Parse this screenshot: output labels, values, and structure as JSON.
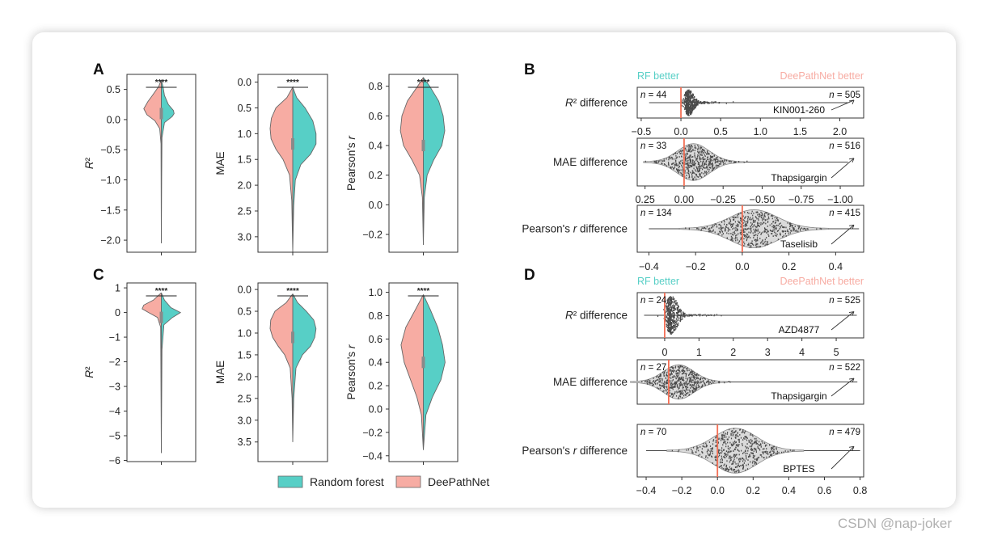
{
  "colors": {
    "rf": "#57cfc6",
    "dpn": "#f7aca3",
    "redline": "#f36f55",
    "beeswarm": "#4a4a4a",
    "violin_grey": "#dadada"
  },
  "watermark": "CSDN @nap-joker",
  "legend": {
    "random_forest": "Random forest",
    "deepathnet": "DeePathNet"
  },
  "chart_data": [
    {
      "panel": "A",
      "metric": "r2",
      "type": "violin",
      "ylabel": "R²",
      "ylim": [
        -2.2,
        0.75
      ],
      "yticks": [
        0.5,
        0.0,
        -0.5,
        -1.0,
        -1.5,
        -2.0
      ],
      "ytick_labels": [
        "0.5",
        "0.0",
        "−0.5",
        "−1.0",
        "−1.5",
        "−2.0"
      ],
      "sig": "****",
      "invert": false,
      "rf": [
        [
          0.66,
          0
        ],
        [
          0.55,
          0.05
        ],
        [
          0.4,
          0.1
        ],
        [
          0.25,
          0.22
        ],
        [
          0.15,
          0.38
        ],
        [
          0.1,
          0.4
        ],
        [
          0.05,
          0.34
        ],
        [
          -0.05,
          0.1
        ],
        [
          -0.3,
          0.02
        ],
        [
          -1,
          0.01
        ],
        [
          -2.05,
          0
        ]
      ],
      "dpn": [
        [
          0.66,
          0
        ],
        [
          0.55,
          0.08
        ],
        [
          0.4,
          0.28
        ],
        [
          0.3,
          0.42
        ],
        [
          0.18,
          0.55
        ],
        [
          0.08,
          0.45
        ],
        [
          -0.02,
          0.2
        ],
        [
          -0.15,
          0.05
        ],
        [
          -0.4,
          0.01
        ],
        [
          -2.05,
          0
        ]
      ]
    },
    {
      "panel": "A",
      "metric": "mae",
      "type": "violin",
      "ylabel": "MAE",
      "ylim": [
        -0.15,
        3.3
      ],
      "yticks": [
        0.0,
        0.5,
        1.0,
        1.5,
        2.0,
        2.5,
        3.0
      ],
      "ytick_labels": [
        "0.0",
        "0.5",
        "1.0",
        "1.5",
        "2.0",
        "2.5",
        "3.0"
      ],
      "sig": "****",
      "invert": true,
      "rf": [
        [
          0.1,
          0
        ],
        [
          0.3,
          0.12
        ],
        [
          0.5,
          0.38
        ],
        [
          0.75,
          0.62
        ],
        [
          1.0,
          0.72
        ],
        [
          1.2,
          0.72
        ],
        [
          1.4,
          0.55
        ],
        [
          1.6,
          0.25
        ],
        [
          1.9,
          0.08
        ],
        [
          2.4,
          0.03
        ],
        [
          3.3,
          0
        ]
      ],
      "dpn": [
        [
          0.1,
          0
        ],
        [
          0.3,
          0.18
        ],
        [
          0.5,
          0.52
        ],
        [
          0.7,
          0.66
        ],
        [
          0.9,
          0.7
        ],
        [
          1.1,
          0.67
        ],
        [
          1.3,
          0.52
        ],
        [
          1.5,
          0.3
        ],
        [
          1.8,
          0.1
        ],
        [
          2.3,
          0.03
        ],
        [
          3.3,
          0
        ]
      ]
    },
    {
      "panel": "A",
      "metric": "pearson",
      "type": "violin",
      "ylabel": "Pearson's r",
      "ylim": [
        -0.32,
        0.88
      ],
      "yticks": [
        0.8,
        0.6,
        0.4,
        0.2,
        0.0,
        -0.2
      ],
      "ytick_labels": [
        "0.8",
        "0.6",
        "0.4",
        "0.2",
        "0.0",
        "−0.2"
      ],
      "sig": "****",
      "invert": false,
      "rf": [
        [
          0.86,
          0
        ],
        [
          0.8,
          0.2
        ],
        [
          0.7,
          0.48
        ],
        [
          0.6,
          0.62
        ],
        [
          0.5,
          0.67
        ],
        [
          0.4,
          0.58
        ],
        [
          0.3,
          0.32
        ],
        [
          0.2,
          0.12
        ],
        [
          0.05,
          0.03
        ],
        [
          -0.27,
          0
        ]
      ],
      "dpn": [
        [
          0.86,
          0
        ],
        [
          0.8,
          0.18
        ],
        [
          0.7,
          0.5
        ],
        [
          0.6,
          0.67
        ],
        [
          0.5,
          0.72
        ],
        [
          0.4,
          0.62
        ],
        [
          0.3,
          0.35
        ],
        [
          0.2,
          0.12
        ],
        [
          0.05,
          0.03
        ],
        [
          -0.27,
          0
        ]
      ]
    },
    {
      "panel": "C",
      "metric": "r2",
      "type": "violin",
      "ylabel": "R²",
      "ylim": [
        -6.05,
        1.2
      ],
      "yticks": [
        1,
        0,
        -1,
        -2,
        -3,
        -4,
        -5,
        -6
      ],
      "ytick_labels": [
        "1",
        "0",
        "−1",
        "−2",
        "−3",
        "−4",
        "−5",
        "−6"
      ],
      "sig": "****",
      "invert": false,
      "rf": [
        [
          0.8,
          0
        ],
        [
          0.5,
          0.1
        ],
        [
          0.2,
          0.3
        ],
        [
          0.0,
          0.6
        ],
        [
          -0.2,
          0.35
        ],
        [
          -0.5,
          0.08
        ],
        [
          -1.5,
          0.02
        ],
        [
          -5.7,
          0
        ]
      ],
      "dpn": [
        [
          0.8,
          0
        ],
        [
          0.5,
          0.25
        ],
        [
          0.3,
          0.55
        ],
        [
          0.15,
          0.6
        ],
        [
          0.0,
          0.4
        ],
        [
          -0.2,
          0.12
        ],
        [
          -0.6,
          0.02
        ],
        [
          -5.7,
          0
        ]
      ]
    },
    {
      "panel": "C",
      "metric": "mae",
      "type": "violin",
      "ylabel": "MAE",
      "ylim": [
        -0.15,
        3.95
      ],
      "yticks": [
        0.0,
        0.5,
        1.0,
        1.5,
        2.0,
        2.5,
        3.0,
        3.5
      ],
      "ytick_labels": [
        "0.0",
        "0.5",
        "1.0",
        "1.5",
        "2.0",
        "2.5",
        "3.0",
        "3.5"
      ],
      "sig": "****",
      "invert": true,
      "rf": [
        [
          0.1,
          0
        ],
        [
          0.3,
          0.15
        ],
        [
          0.5,
          0.42
        ],
        [
          0.7,
          0.65
        ],
        [
          0.9,
          0.72
        ],
        [
          1.1,
          0.68
        ],
        [
          1.3,
          0.55
        ],
        [
          1.5,
          0.3
        ],
        [
          1.8,
          0.1
        ],
        [
          2.5,
          0.03
        ],
        [
          3.5,
          0
        ]
      ],
      "dpn": [
        [
          0.1,
          0
        ],
        [
          0.3,
          0.2
        ],
        [
          0.5,
          0.55
        ],
        [
          0.7,
          0.68
        ],
        [
          0.9,
          0.7
        ],
        [
          1.1,
          0.62
        ],
        [
          1.3,
          0.45
        ],
        [
          1.5,
          0.25
        ],
        [
          1.8,
          0.08
        ],
        [
          2.5,
          0.02
        ],
        [
          3.5,
          0
        ]
      ]
    },
    {
      "panel": "C",
      "metric": "pearson",
      "type": "violin",
      "ylabel": "Pearson's r",
      "ylim": [
        -0.45,
        1.08
      ],
      "yticks": [
        1.0,
        0.8,
        0.6,
        0.4,
        0.2,
        0.0,
        -0.2,
        -0.4
      ],
      "ytick_labels": [
        "1.0",
        "0.8",
        "0.6",
        "0.4",
        "0.2",
        "0.0",
        "−0.2",
        "−0.4"
      ],
      "sig": "****",
      "invert": false,
      "rf": [
        [
          0.98,
          0
        ],
        [
          0.85,
          0.22
        ],
        [
          0.7,
          0.45
        ],
        [
          0.55,
          0.6
        ],
        [
          0.4,
          0.68
        ],
        [
          0.25,
          0.55
        ],
        [
          0.1,
          0.28
        ],
        [
          -0.05,
          0.08
        ],
        [
          -0.35,
          0
        ]
      ],
      "dpn": [
        [
          0.98,
          0
        ],
        [
          0.85,
          0.25
        ],
        [
          0.7,
          0.55
        ],
        [
          0.55,
          0.7
        ],
        [
          0.4,
          0.6
        ],
        [
          0.25,
          0.4
        ],
        [
          0.1,
          0.2
        ],
        [
          -0.05,
          0.06
        ],
        [
          -0.35,
          0
        ]
      ]
    },
    {
      "panel": "B",
      "type": "beeswarm",
      "ylabel": "R² difference",
      "header_left": "RF better",
      "header_right": "DeePathNet better",
      "n_left": "n = 44",
      "n_right": "n = 505",
      "annot": "KIN001-260",
      "xlim": [
        -0.55,
        2.3
      ],
      "invert": false,
      "xticks": [
        -0.5,
        0.0,
        0.5,
        1.0,
        1.5,
        2.0
      ],
      "xtick_labels": [
        "−0.5",
        "0.0",
        "0.5",
        "1.0",
        "1.5",
        "2.0"
      ],
      "zero": 0.0,
      "center": 0.1,
      "spread": 0.06,
      "whisk": [
        -0.4,
        2.1
      ],
      "violin": false,
      "height_scale": 1.0
    },
    {
      "panel": "B",
      "type": "beeswarm",
      "ylabel": "MAE difference",
      "n_left": "n = 33",
      "n_right": "n = 516",
      "annot": "Thapsigargin",
      "xlim": [
        0.3,
        -1.15
      ],
      "invert": true,
      "xticks": [
        0.25,
        0.0,
        -0.25,
        -0.5,
        -0.75,
        -1.0
      ],
      "xtick_labels": [
        "0.25",
        "0.00",
        "−0.25",
        "−0.50",
        "−0.75",
        "−1.00"
      ],
      "zero": 0.0,
      "center": -0.06,
      "spread": 0.1,
      "whisk": [
        0.25,
        -1.05
      ],
      "violin": true,
      "height_scale": 0.9
    },
    {
      "panel": "B",
      "type": "beeswarm",
      "ylabel": "Pearson's r difference",
      "n_left": "n = 134",
      "n_right": "n = 415",
      "annot": "Taselisib",
      "xlim": [
        -0.45,
        0.52
      ],
      "invert": false,
      "xticks": [
        -0.4,
        -0.2,
        0.0,
        0.2,
        0.4
      ],
      "xtick_labels": [
        "−0.4",
        "−0.2",
        "0.0",
        "0.2",
        "0.4"
      ],
      "zero": 0.0,
      "center": 0.05,
      "spread": 0.1,
      "whisk": [
        -0.4,
        0.5
      ],
      "violin": true,
      "height_scale": 0.95
    },
    {
      "panel": "D",
      "type": "beeswarm",
      "ylabel": "R² difference",
      "header_left": "RF better",
      "header_right": "DeePathNet better",
      "n_left": "n = 24",
      "n_right": "n = 525",
      "annot": "AZD4877",
      "xlim": [
        -0.8,
        5.8
      ],
      "invert": false,
      "xticks": [
        0,
        1,
        2,
        3,
        4,
        5
      ],
      "xtick_labels": [
        "0",
        "1",
        "2",
        "3",
        "4",
        "5"
      ],
      "zero": 0.0,
      "center": 0.2,
      "spread": 0.18,
      "whisk": [
        -0.6,
        5.6
      ],
      "violin": false,
      "height_scale": 1.0
    },
    {
      "panel": "D",
      "type": "beeswarm",
      "ylabel": "MAE difference",
      "n_left": "n = 27",
      "n_right": "n = 522",
      "annot": "Thapsigargin",
      "xlim": [
        0.25,
        -1.55
      ],
      "invert": true,
      "xticks": [],
      "xtick_labels": [],
      "zero": 0.0,
      "center": -0.08,
      "spread": 0.12,
      "whisk": [
        0.2,
        -1.5
      ],
      "violin": true,
      "height_scale": 0.9
    },
    {
      "panel": "D",
      "type": "beeswarm",
      "ylabel": "Pearson's r difference",
      "n_left": "n = 70",
      "n_right": "n = 479",
      "annot": "BPTES",
      "xlim": [
        -0.45,
        0.82
      ],
      "invert": false,
      "xticks": [
        -0.4,
        -0.2,
        0.0,
        0.2,
        0.4,
        0.6,
        0.8
      ],
      "xtick_labels": [
        "−0.4",
        "−0.2",
        "0.0",
        "0.2",
        "0.4",
        "0.6",
        "0.8"
      ],
      "zero": 0.0,
      "center": 0.1,
      "spread": 0.12,
      "whisk": [
        -0.4,
        0.8
      ],
      "violin": true,
      "height_scale": 1.0
    }
  ]
}
